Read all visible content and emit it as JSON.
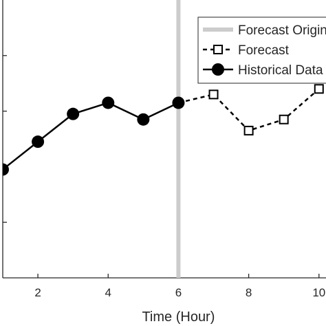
{
  "chart_data": {
    "type": "line",
    "xlabel": "Time (Hour)",
    "ylabel": "",
    "xlim": [
      1,
      10.2
    ],
    "ylim": [
      0,
      10
    ],
    "xticks": [
      2,
      4,
      6,
      8,
      10
    ],
    "xtick_labels": [
      "2",
      "4",
      "6",
      "8",
      "10"
    ],
    "yticks": [
      2,
      4,
      6,
      8
    ],
    "grid": false,
    "legend_position": "top-right",
    "forecast_origin_x": 6,
    "series": [
      {
        "name": "Historical Data",
        "style": "solid-filled-circle",
        "color": "#000000",
        "x": [
          1,
          2,
          3,
          4,
          5,
          6
        ],
        "y": [
          3.9,
          4.9,
          5.9,
          6.3,
          5.7,
          6.3
        ]
      },
      {
        "name": "Forecast",
        "style": "dashed-open-square",
        "color": "#000000",
        "x": [
          6,
          7,
          8,
          9,
          10
        ],
        "y": [
          6.3,
          6.6,
          5.3,
          5.7,
          6.8
        ]
      }
    ],
    "legend": [
      {
        "label": "Forecast Origin",
        "marker": "gray-line",
        "color": "#cccccc"
      },
      {
        "label": "Forecast",
        "marker": "dashed-open-square"
      },
      {
        "label": "Historical Data",
        "marker": "solid-filled-circle"
      }
    ]
  }
}
